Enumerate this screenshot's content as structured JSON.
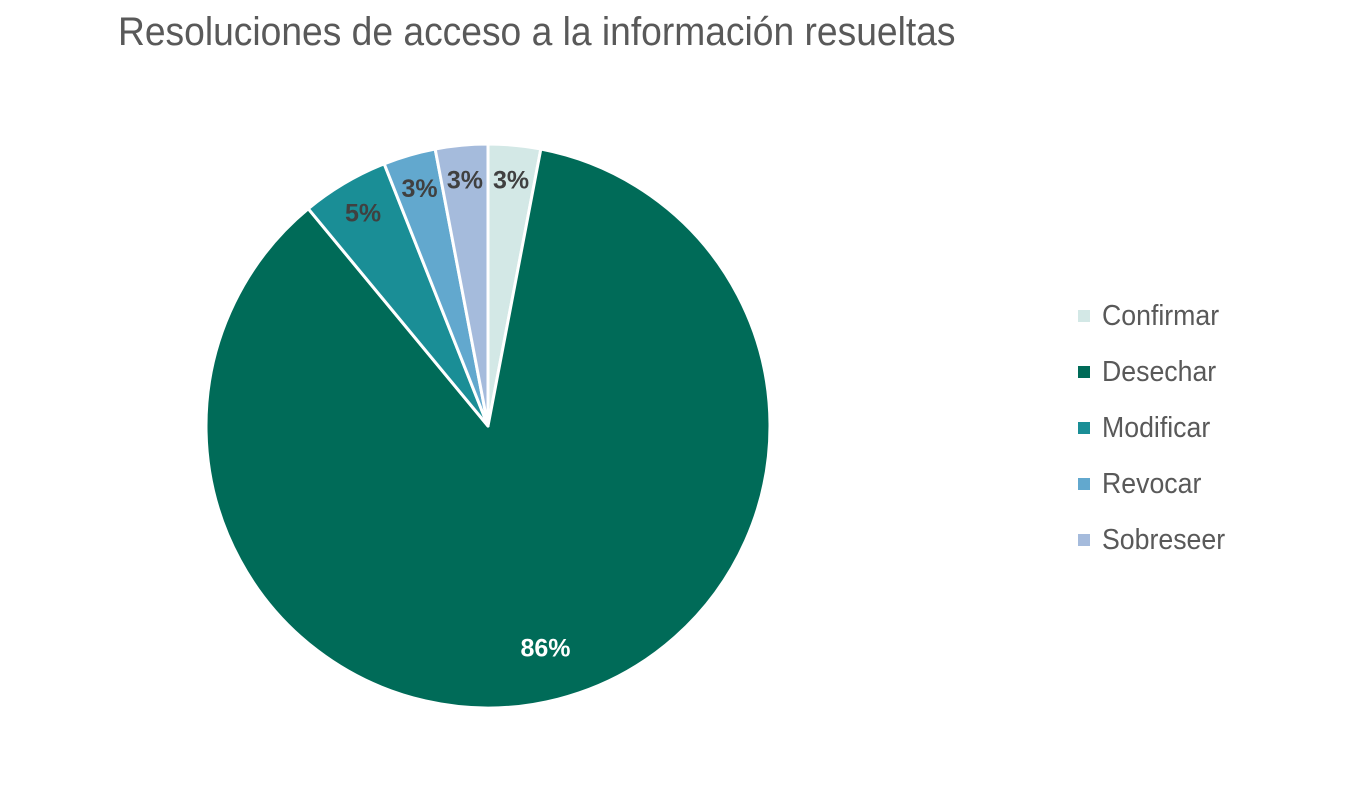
{
  "chart_data": {
    "type": "pie",
    "title": "Resoluciones de acceso a la información resueltas",
    "legend_position": "right",
    "slices": [
      {
        "name": "Confirmar",
        "value": 3,
        "label": "3%",
        "color": "#D3E8E6",
        "label_color": "#404040"
      },
      {
        "name": "Desechar",
        "value": 86,
        "label": "86%",
        "color": "#006B58",
        "label_color": "#FFFFFF"
      },
      {
        "name": "Modificar",
        "value": 5,
        "label": "5%",
        "color": "#1A8E96",
        "label_color": "#404040"
      },
      {
        "name": "Revocar",
        "value": 3,
        "label": "3%",
        "color": "#62A8CE",
        "label_color": "#404040"
      },
      {
        "name": "Sobreseer",
        "value": 3,
        "label": "3%",
        "color": "#A5BBDC",
        "label_color": "#404040"
      }
    ]
  }
}
